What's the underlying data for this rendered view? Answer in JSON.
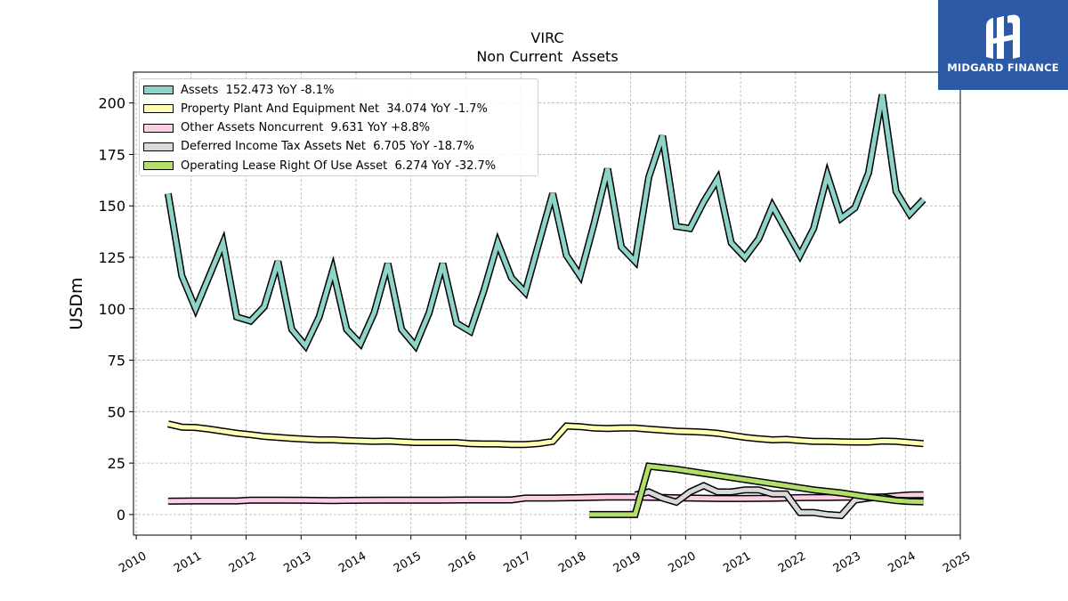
{
  "chart_data": {
    "type": "line",
    "title": "VIRC",
    "subtitle": "Non Current  Assets",
    "ylabel": "USDm",
    "xlabel": "",
    "ylim": [
      -10,
      215
    ],
    "xlim": [
      2009.95,
      2025.0
    ],
    "yticks": [
      0,
      25,
      50,
      75,
      100,
      125,
      150,
      175,
      200
    ],
    "xticks": [
      "2010",
      "2011",
      "2012",
      "2013",
      "2014",
      "2015",
      "2016",
      "2017",
      "2018",
      "2019",
      "2020",
      "2021",
      "2022",
      "2023",
      "2024",
      "2025"
    ],
    "grid": true,
    "legend_position": "top-left",
    "series": [
      {
        "name": "Assets",
        "legend": "Assets  152.473 YoY -8.1%",
        "color": "#8dd3c7",
        "lineWidth": 5,
        "x": [
          2010.58,
          2010.83,
          2011.08,
          2011.33,
          2011.58,
          2011.83,
          2012.08,
          2012.33,
          2012.58,
          2012.83,
          2013.08,
          2013.33,
          2013.58,
          2013.83,
          2014.08,
          2014.33,
          2014.58,
          2014.83,
          2015.08,
          2015.33,
          2015.58,
          2015.83,
          2016.08,
          2016.33,
          2016.58,
          2016.83,
          2017.08,
          2017.33,
          2017.58,
          2017.83,
          2018.08,
          2018.33,
          2018.58,
          2018.83,
          2019.08,
          2019.33,
          2019.58,
          2019.83,
          2020.08,
          2020.33,
          2020.58,
          2020.83,
          2021.08,
          2021.33,
          2021.58,
          2021.83,
          2022.08,
          2022.33,
          2022.58,
          2022.83,
          2023.08,
          2023.33,
          2023.58,
          2023.83,
          2024.08,
          2024.33
        ],
        "y": [
          156,
          116,
          100,
          116,
          132,
          96,
          94,
          101,
          123,
          90,
          82,
          96,
          119,
          90,
          83,
          98,
          122,
          90,
          82,
          98,
          122,
          93,
          89,
          109,
          132,
          115,
          108,
          132,
          156,
          126,
          116,
          141,
          168,
          130,
          123,
          164,
          184,
          140,
          139,
          152,
          163,
          132,
          125,
          134,
          150,
          138,
          126,
          139,
          165,
          144,
          149,
          166,
          204,
          157,
          146,
          153
        ]
      },
      {
        "name": "Property Plant And Equipment Net",
        "legend": "Property Plant And Equipment Net  34.074 YoY -1.7%",
        "color": "#ffffb3",
        "lineWidth": 5,
        "x": [
          2010.58,
          2010.83,
          2011.08,
          2011.33,
          2011.58,
          2011.83,
          2012.08,
          2012.33,
          2012.58,
          2012.83,
          2013.08,
          2013.33,
          2013.58,
          2013.83,
          2014.08,
          2014.33,
          2014.58,
          2014.83,
          2015.08,
          2015.33,
          2015.58,
          2015.83,
          2016.08,
          2016.33,
          2016.58,
          2016.83,
          2017.08,
          2017.33,
          2017.58,
          2017.83,
          2018.08,
          2018.33,
          2018.58,
          2018.83,
          2019.08,
          2019.33,
          2019.58,
          2019.83,
          2020.08,
          2020.33,
          2020.58,
          2020.83,
          2021.08,
          2021.33,
          2021.58,
          2021.83,
          2022.08,
          2022.33,
          2022.58,
          2022.83,
          2023.08,
          2023.33,
          2023.58,
          2023.83,
          2024.08,
          2024.33
        ],
        "y": [
          44,
          42.5,
          42.3,
          41.5,
          40.5,
          39.5,
          38.8,
          38,
          37.5,
          37,
          36.6,
          36.3,
          36.3,
          36,
          35.8,
          35.5,
          35.7,
          35.3,
          35,
          35,
          35,
          35,
          34.5,
          34.3,
          34.3,
          34,
          34,
          34.5,
          35.5,
          43,
          42.7,
          42,
          41.8,
          42,
          42,
          41.5,
          41,
          40.5,
          40.3,
          40,
          39.5,
          38.5,
          37.5,
          36.8,
          36.3,
          36.5,
          36,
          35.5,
          35.5,
          35.3,
          35.2,
          35.2,
          35.7,
          35.5,
          35,
          34.5
        ]
      },
      {
        "name": "Other Assets Noncurrent",
        "legend": "Other Assets Noncurrent  9.631 YoY +8.8%",
        "color": "#fccde5",
        "lineWidth": 5,
        "x": [
          2010.58,
          2011.08,
          2011.58,
          2011.83,
          2012.08,
          2012.58,
          2013.08,
          2013.58,
          2014.08,
          2014.58,
          2015.08,
          2015.58,
          2016.08,
          2016.58,
          2016.83,
          2017.08,
          2017.58,
          2018.08,
          2018.58,
          2019.08,
          2019.58,
          2020.08,
          2020.58,
          2021.08,
          2021.58,
          2022.08,
          2022.58,
          2023.08,
          2023.58,
          2024.08,
          2024.33
        ],
        "y": [
          6.5,
          6.6,
          6.6,
          6.6,
          7,
          7,
          6.9,
          6.8,
          6.9,
          7,
          7,
          7,
          7.1,
          7.1,
          7.1,
          8,
          8,
          8.2,
          8.5,
          8.5,
          8.3,
          8,
          7.8,
          7.8,
          7.9,
          8.2,
          8.3,
          8.5,
          8.5,
          9.5,
          9.6
        ]
      },
      {
        "name": "Deferred Income Tax Assets Net",
        "legend": "Deferred Income Tax Assets Net  6.705 YoY -18.7%",
        "color": "#d9d9d9",
        "lineWidth": 5,
        "x": [
          2019.08,
          2019.33,
          2019.58,
          2019.83,
          2020.08,
          2020.33,
          2020.58,
          2020.83,
          2021.08,
          2021.33,
          2021.58,
          2021.83,
          2022.08,
          2022.33,
          2022.58,
          2022.83,
          2023.08,
          2023.33,
          2023.58,
          2023.83,
          2024.08,
          2024.33
        ],
        "y": [
          9.5,
          11,
          8,
          6,
          11,
          14,
          11,
          11,
          12,
          12,
          10,
          10,
          1,
          1,
          0,
          -0.5,
          7,
          8,
          8.5,
          7,
          6.7,
          6.7
        ]
      },
      {
        "name": "Operating Lease Right Of Use Asset",
        "legend": "Operating Lease Right Of Use Asset  6.274 YoY -32.7%",
        "color": "#b3de69",
        "lineWidth": 5,
        "x": [
          2018.25,
          2019.08,
          2019.33,
          2019.83,
          2020.33,
          2020.83,
          2021.33,
          2021.83,
          2022.33,
          2022.83,
          2023.33,
          2023.83,
          2024.08,
          2024.33
        ],
        "y": [
          0,
          0,
          23.5,
          22,
          20,
          18,
          16,
          14,
          12,
          10.5,
          8.5,
          6.8,
          6.3,
          6.2
        ]
      }
    ]
  },
  "logo": {
    "brand": "MIDGARD FINANCE",
    "background": "#2d5aa6"
  }
}
